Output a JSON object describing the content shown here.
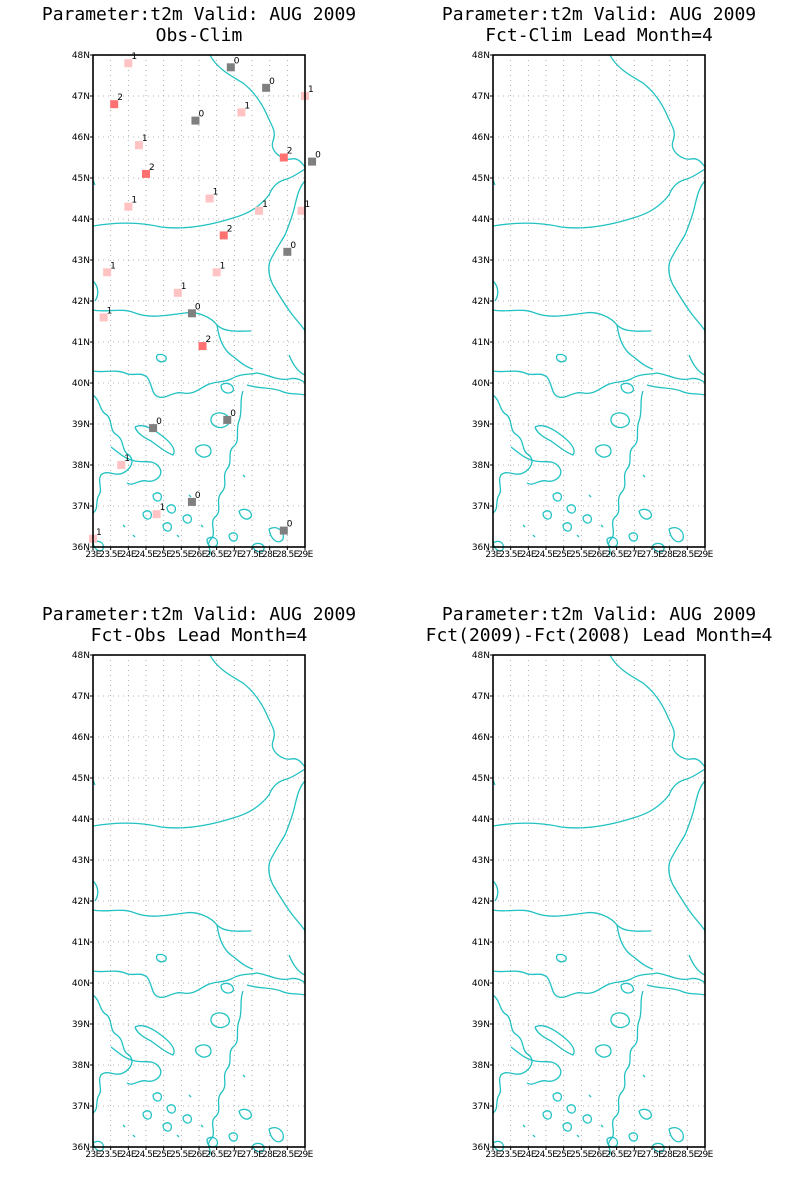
{
  "figure": {
    "panels": [
      {
        "title_line1": "Parameter:t2m Valid: AUG 2009",
        "title_line2": "Obs-Clim"
      },
      {
        "title_line1": "Parameter:t2m Valid: AUG 2009",
        "title_line2": "Fct-Clim Lead Month=4"
      },
      {
        "title_line1": "Parameter:t2m Valid: AUG 2009",
        "title_line2": "Fct-Obs Lead Month=4"
      },
      {
        "title_line1": "Parameter:t2m Valid: AUG 2009",
        "title_line2": "Fct(2009)-Fct(2008) Lead Month=4"
      }
    ],
    "lat_labels": [
      "48N",
      "47N",
      "46N",
      "45N",
      "44N",
      "43N",
      "42N",
      "41N",
      "40N",
      "39N",
      "38N",
      "37N",
      "36N"
    ],
    "lon_labels": [
      "23E",
      "23.5E",
      "24E",
      "24.5E",
      "25E",
      "25.5E",
      "26E",
      "26.5E",
      "27E",
      "27.5E",
      "28E",
      "28.5E",
      "29E"
    ],
    "colors": {
      "coast": "#22c2c2",
      "class_0": "#7f7f7f",
      "class_1": "#ffc3c3",
      "class_2": "#ff7070"
    }
  },
  "chart_data": {
    "type": "map-scatter",
    "lon_range": [
      23,
      29
    ],
    "lat_range": [
      36,
      48
    ],
    "stations": [
      {
        "lon": 24.0,
        "lat": 47.8,
        "value": "1"
      },
      {
        "lon": 26.9,
        "lat": 47.7,
        "value": "0"
      },
      {
        "lon": 27.9,
        "lat": 47.2,
        "value": "0"
      },
      {
        "lon": 29.0,
        "lat": 47.0,
        "value": "1"
      },
      {
        "lon": 23.6,
        "lat": 46.8,
        "value": "2"
      },
      {
        "lon": 27.2,
        "lat": 46.6,
        "value": "1"
      },
      {
        "lon": 25.9,
        "lat": 46.4,
        "value": "0"
      },
      {
        "lon": 24.3,
        "lat": 45.8,
        "value": "1"
      },
      {
        "lon": 28.4,
        "lat": 45.5,
        "value": "2"
      },
      {
        "lon": 29.2,
        "lat": 45.4,
        "value": "0"
      },
      {
        "lon": 24.5,
        "lat": 45.1,
        "value": "2"
      },
      {
        "lon": 26.3,
        "lat": 44.5,
        "value": "1"
      },
      {
        "lon": 24.0,
        "lat": 44.3,
        "value": "1"
      },
      {
        "lon": 27.7,
        "lat": 44.2,
        "value": "1"
      },
      {
        "lon": 28.9,
        "lat": 44.2,
        "value": "1"
      },
      {
        "lon": 26.7,
        "lat": 43.6,
        "value": "2"
      },
      {
        "lon": 28.5,
        "lat": 43.2,
        "value": "0"
      },
      {
        "lon": 23.4,
        "lat": 42.7,
        "value": "1"
      },
      {
        "lon": 26.5,
        "lat": 42.7,
        "value": "1"
      },
      {
        "lon": 25.4,
        "lat": 42.2,
        "value": "1"
      },
      {
        "lon": 25.8,
        "lat": 41.7,
        "value": "0"
      },
      {
        "lon": 23.3,
        "lat": 41.6,
        "value": "1"
      },
      {
        "lon": 26.1,
        "lat": 40.9,
        "value": "2"
      },
      {
        "lon": 26.8,
        "lat": 39.1,
        "value": "0"
      },
      {
        "lon": 24.7,
        "lat": 38.9,
        "value": "0"
      },
      {
        "lon": 23.8,
        "lat": 38.0,
        "value": "1"
      },
      {
        "lon": 25.8,
        "lat": 37.1,
        "value": "0"
      },
      {
        "lon": 24.8,
        "lat": 36.8,
        "value": "1"
      },
      {
        "lon": 28.4,
        "lat": 36.4,
        "value": "0"
      },
      {
        "lon": 23.0,
        "lat": 36.2,
        "value": "1"
      }
    ]
  }
}
